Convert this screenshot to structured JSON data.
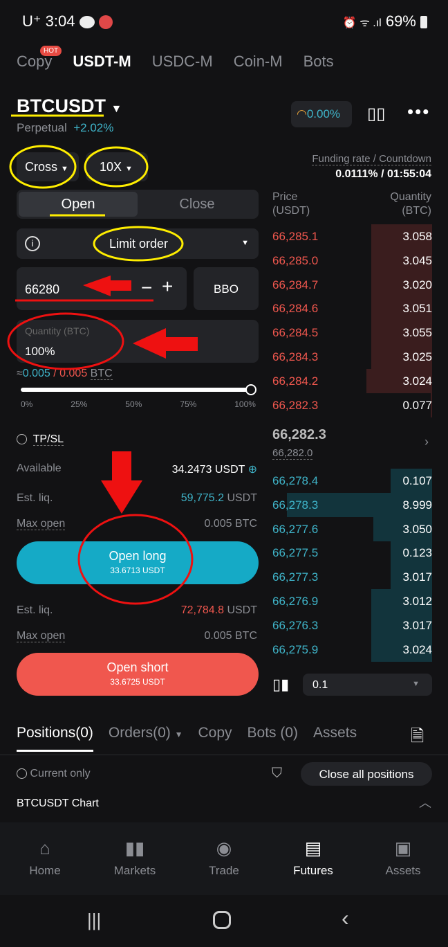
{
  "status_bar": {
    "carrier": "U⁺",
    "time": "3:04",
    "battery": "69%"
  },
  "top_tabs": [
    {
      "label": "Copy",
      "badge": "HOT"
    },
    {
      "label": "USDT-M",
      "active": true
    },
    {
      "label": "USDC-M"
    },
    {
      "label": "Coin-M"
    },
    {
      "label": "Bots"
    }
  ],
  "symbol": {
    "name": "BTCUSDT",
    "type": "Perpetual",
    "change": "+2.02%",
    "sentiment": "0.00%"
  },
  "margin_mode": "Cross",
  "leverage": "10X",
  "funding": {
    "label": "Funding rate / Countdown",
    "value": "0.0111% / 01:55:04"
  },
  "order_tabs": [
    "Open",
    "Close"
  ],
  "order_type": "Limit order",
  "price_input": "66280",
  "bbo": "BBO",
  "quantity": {
    "label": "Quantity (BTC)",
    "value": "100%",
    "approx": "≈",
    "amount": "0.005",
    "separator": " / ",
    "max": "0.005",
    "unit": "BTC"
  },
  "slider": {
    "value_percent": 100,
    "ticks": [
      "0%",
      "25%",
      "50%",
      "75%",
      "100%"
    ]
  },
  "tpsl": "TP/SL",
  "available": {
    "label": "Available",
    "value": "34.2473 USDT"
  },
  "long": {
    "liq_label": "Est. liq.",
    "liq_value": "59,775.2",
    "liq_unit": " USDT",
    "max_label": "Max open",
    "max_value": "0.005 BTC",
    "button": "Open long",
    "button_sub": "33.6713 USDT"
  },
  "short": {
    "liq_label": "Est. liq.",
    "liq_value": "72,784.8",
    "liq_unit": " USDT",
    "max_label": "Max open",
    "max_value": "0.005 BTC",
    "button": "Open short",
    "button_sub": "33.6725 USDT"
  },
  "orderbook": {
    "price_header": "Price\n(USDT)",
    "qty_header": "Quantity\n(BTC)",
    "asks": [
      [
        "66,285.1",
        "3.058",
        0.38
      ],
      [
        "66,285.0",
        "3.045",
        0.38
      ],
      [
        "66,284.7",
        "3.020",
        0.38
      ],
      [
        "66,284.6",
        "3.051",
        0.38
      ],
      [
        "66,284.5",
        "3.055",
        0.38
      ],
      [
        "66,284.3",
        "3.025",
        0.38
      ],
      [
        "66,284.2",
        "3.024",
        0.41
      ],
      [
        "66,282.3",
        "0.077",
        0.01
      ]
    ],
    "last_price": "66,282.3",
    "mark_price": "66,282.0",
    "bids": [
      [
        "66,278.4",
        "0.107",
        0.26
      ],
      [
        "66,278.3",
        "8.999",
        0.91
      ],
      [
        "66,277.6",
        "3.050",
        0.37
      ],
      [
        "66,277.5",
        "0.123",
        0.26
      ],
      [
        "66,277.3",
        "3.017",
        0.26
      ],
      [
        "66,276.9",
        "3.012",
        0.38
      ],
      [
        "66,276.3",
        "3.017",
        0.38
      ],
      [
        "66,275.9",
        "3.024",
        0.38
      ]
    ],
    "precision": "0.1"
  },
  "bottom_tabs": [
    "Positions(0)",
    "Orders(0)",
    "Copy",
    "Bots (0)",
    "Assets"
  ],
  "current_only": "Current only",
  "close_all": "Close all positions",
  "chart_label": "BTCUSDT Chart",
  "nav": [
    "Home",
    "Markets",
    "Trade",
    "Futures",
    "Assets"
  ],
  "colors": {
    "accent": "#3fb4c9",
    "long": "#15aac6",
    "short": "#f0574e",
    "annotation_yellow": "#ffee00",
    "annotation_red": "#ee1111"
  }
}
